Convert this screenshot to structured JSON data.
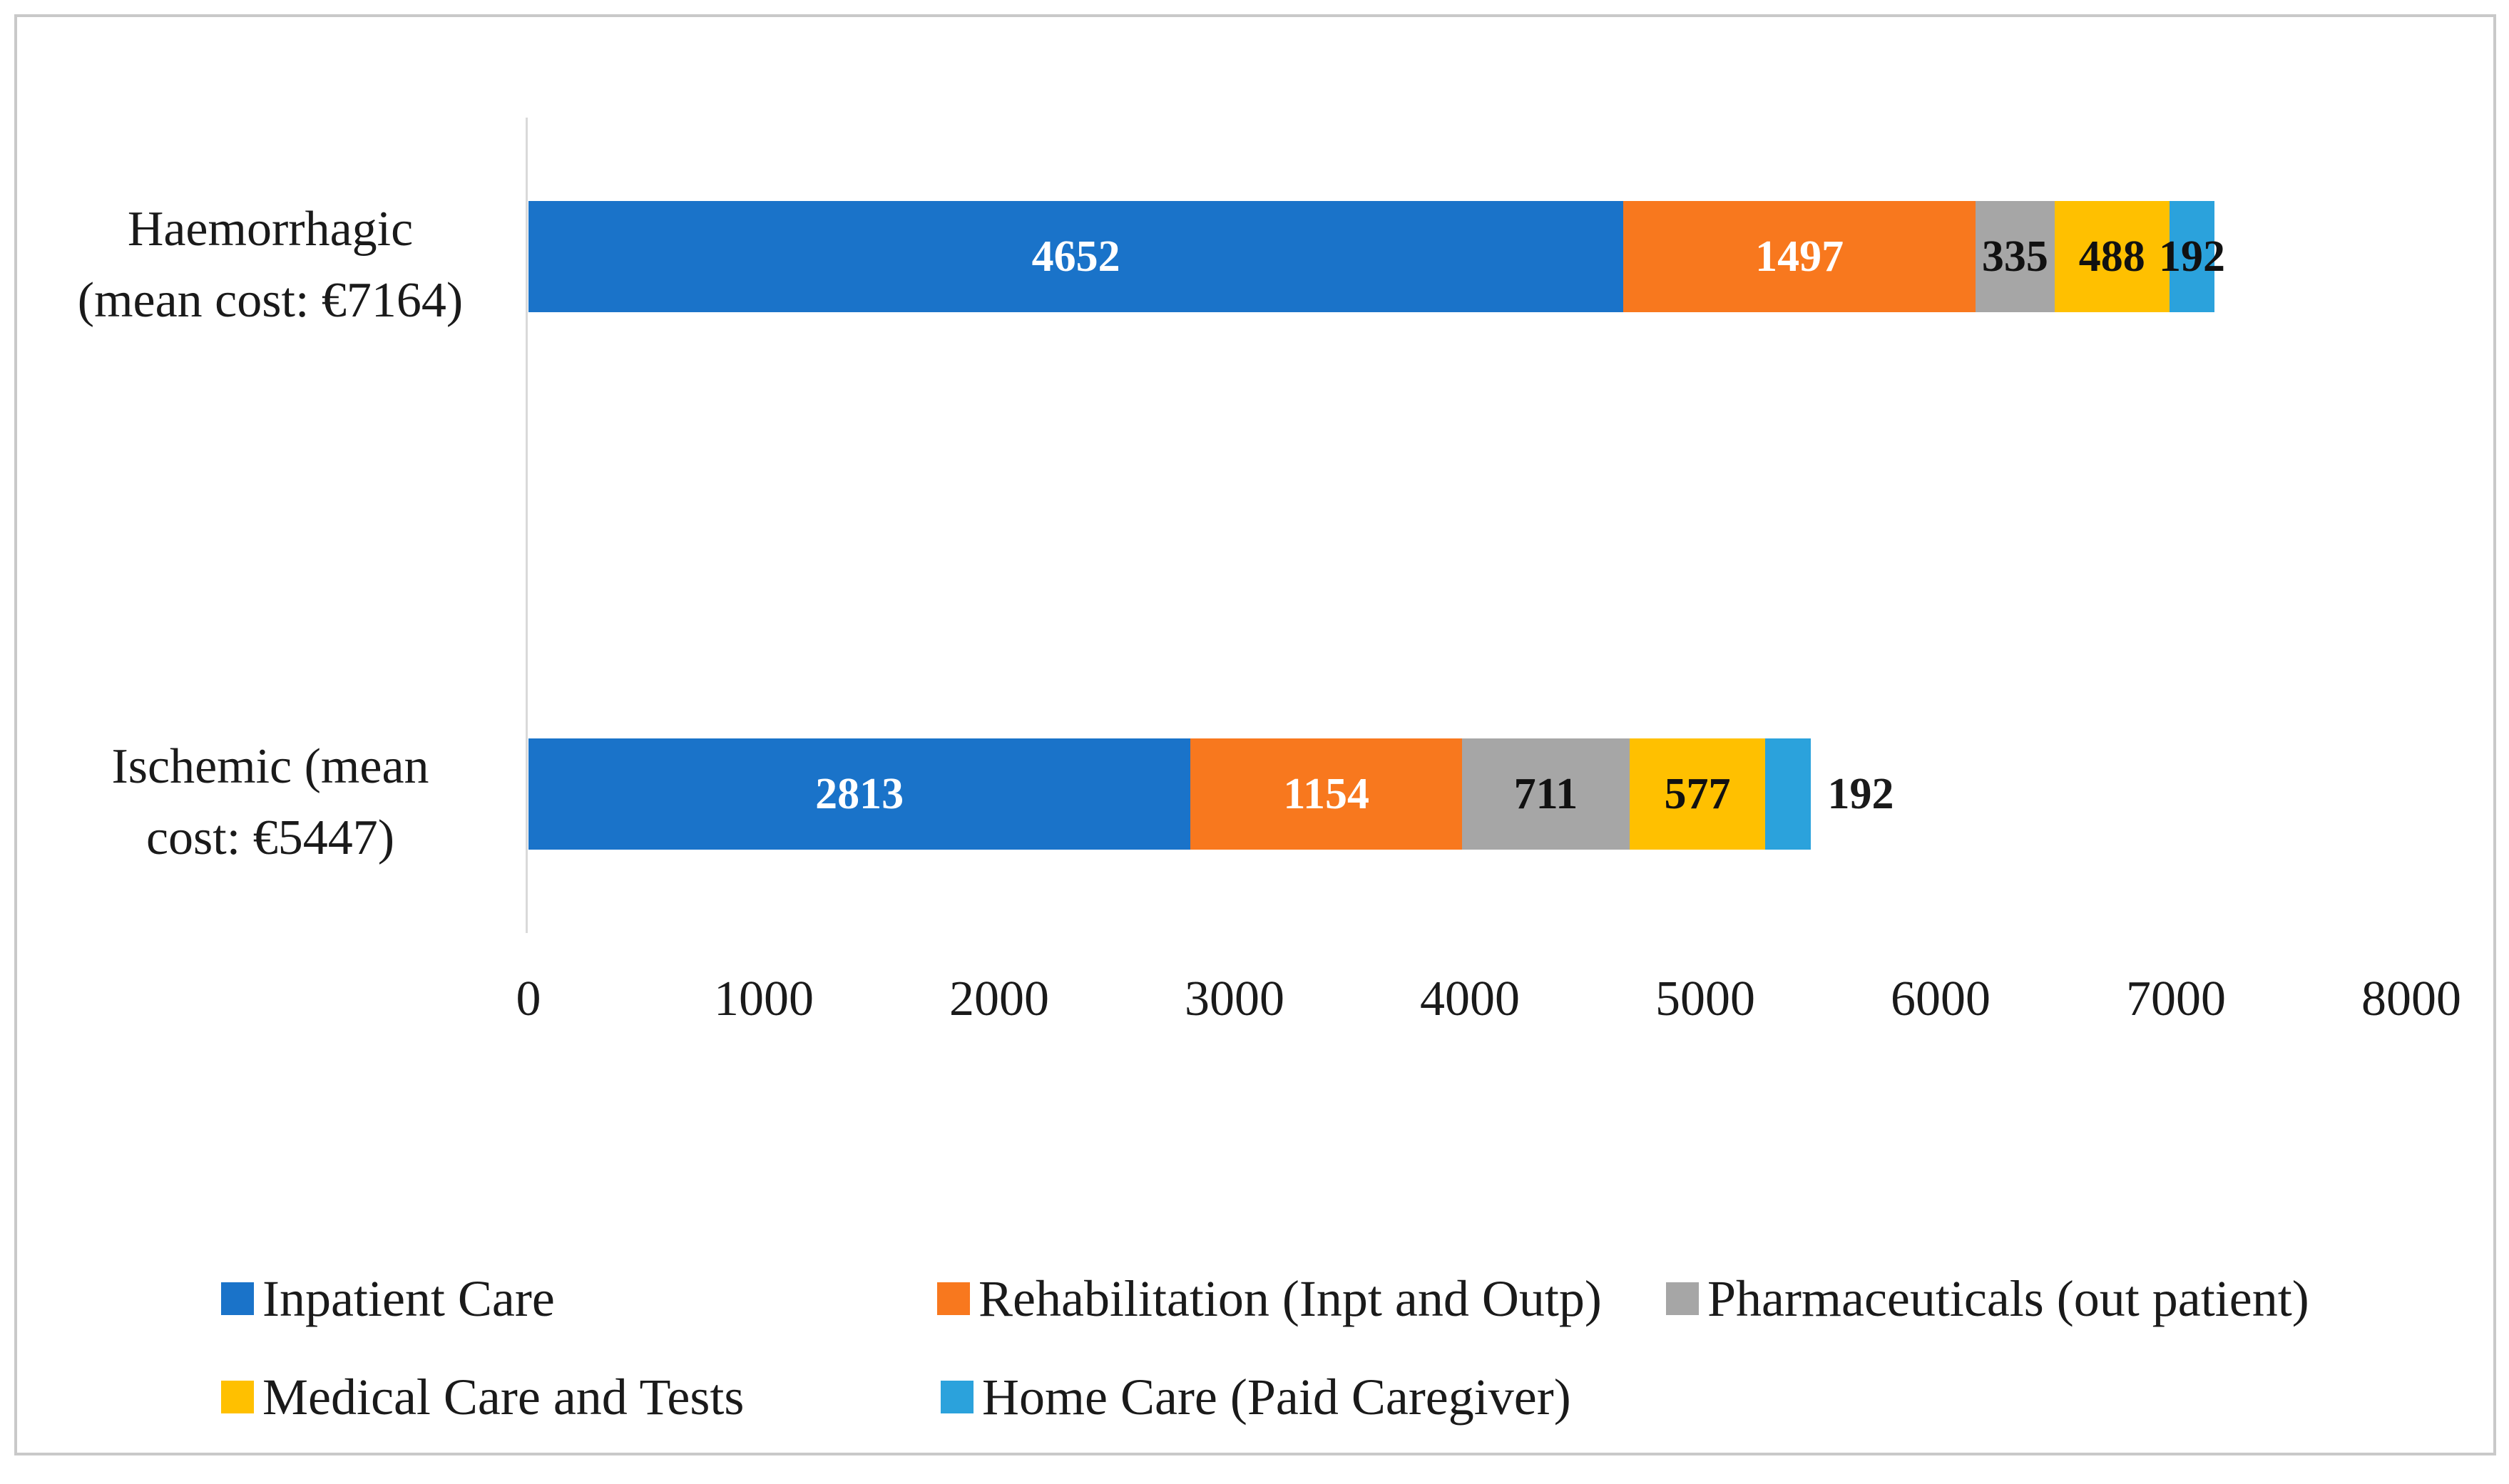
{
  "figure": {
    "background_color": "#ffffff",
    "frame_border_color": "#c9c9c9",
    "axis_line_color": "#d9d9d9"
  },
  "chart_data": {
    "type": "bar",
    "subtype": "horizontal-stacked",
    "title": "",
    "xlabel": "",
    "ylabel": "",
    "xlim": [
      0,
      8000
    ],
    "x_ticks": [
      0,
      1000,
      2000,
      3000,
      4000,
      5000,
      6000,
      7000,
      8000
    ],
    "grid": false,
    "legend_position": "bottom",
    "categories": [
      "Haemorrhagic\n(mean cost: €7164)",
      "Ischemic (mean\ncost: €5447)"
    ],
    "category_totals": [
      7164,
      5447
    ],
    "series": [
      {
        "name": "Inpatient Care",
        "color": "#1a73c9",
        "label_text_color": "#ffffff",
        "values": [
          4652,
          2813
        ]
      },
      {
        "name": "Rehabilitation (Inpt and Outp)",
        "color": "#f8781e",
        "label_text_color": "#ffffff",
        "values": [
          1497,
          1154
        ]
      },
      {
        "name": "Pharmaceuticals (out patient)",
        "color": "#a6a6a6",
        "label_text_color": "#111111",
        "values": [
          335,
          711
        ]
      },
      {
        "name": "Medical Care and Tests",
        "color": "#ffc000",
        "label_text_color": "#111111",
        "values": [
          488,
          577
        ]
      },
      {
        "name": "Home Care (Paid Caregiver)",
        "color": "#2ba2dc",
        "label_text_color": "#111111",
        "values": [
          192,
          192
        ]
      }
    ],
    "last_segment_label_outside": [
      false,
      true
    ]
  }
}
